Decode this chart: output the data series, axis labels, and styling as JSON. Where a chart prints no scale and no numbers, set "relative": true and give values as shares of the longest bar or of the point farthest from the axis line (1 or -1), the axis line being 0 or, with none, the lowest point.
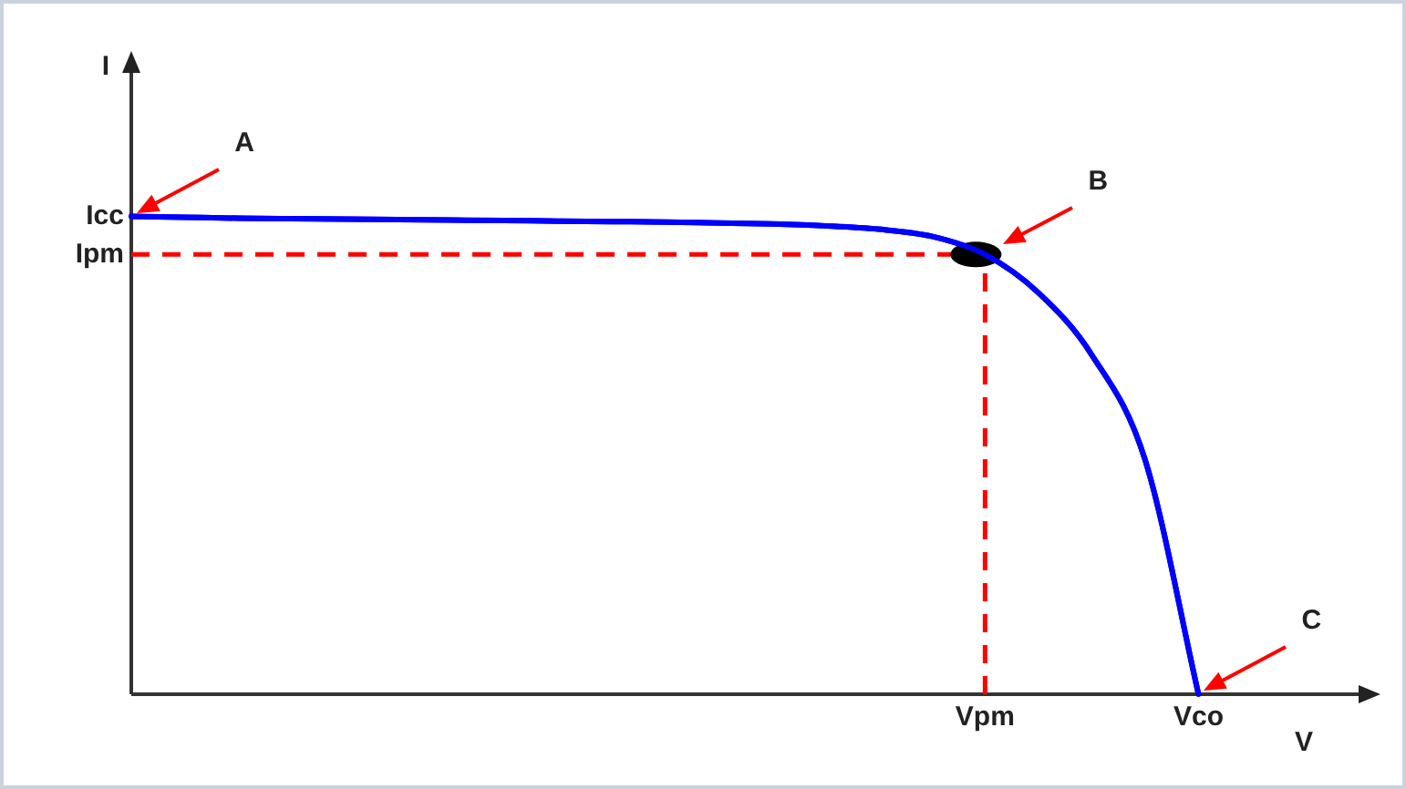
{
  "chart_data": {
    "type": "line",
    "relative": true,
    "xlabel": "V",
    "ylabel": "I",
    "categories": [
      null,
      null,
      null,
      null,
      null,
      null,
      null,
      null,
      null,
      null,
      null,
      null,
      null,
      null,
      null,
      null,
      "Vpm",
      null,
      null,
      null,
      "Vco",
      null,
      null,
      null
    ],
    "series": [
      {
        "color": "#0000ff",
        "values": [
          1,
          0.998,
          0.996,
          0.995,
          0.994,
          0.993,
          0.992,
          0.991,
          0.99,
          0.989,
          0.988,
          0.986,
          0.984,
          0.98,
          0.973,
          0.958,
          0.92,
          0.84,
          0.71,
          0.49,
          0,
          null,
          null,
          null
        ]
      }
    ],
    "ref_lines": [
      {
        "axis": "y",
        "value": 0.92,
        "label": "Ipm",
        "color": "#ff0000",
        "line_style": "dashed"
      },
      {
        "axis": "x",
        "value": "Vpm",
        "color": "#ff0000",
        "line_style": "dashed"
      }
    ],
    "annotations": [
      "A",
      "Icc",
      "B",
      "C"
    ],
    "grid": false,
    "legend": false,
    "marker": "none",
    "line_style": "solid"
  }
}
